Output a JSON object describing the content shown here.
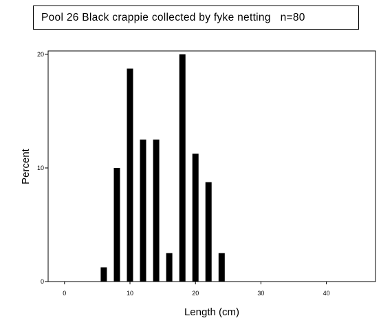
{
  "chart_data": {
    "type": "bar",
    "title": "Pool 26 Black crappie collected by fyke netting   n=80",
    "xlabel": "Length (cm)",
    "ylabel": "Percent",
    "x": [
      6,
      8,
      10,
      12,
      14,
      16,
      18,
      20,
      22,
      24
    ],
    "values": [
      1.25,
      10,
      18.75,
      12.5,
      12.5,
      2.5,
      20,
      11.25,
      8.75,
      2.5
    ],
    "xlim": [
      -2.5,
      47.5
    ],
    "ylim": [
      0,
      20.3
    ],
    "x_ticks": [
      0,
      10,
      20,
      30,
      40
    ],
    "y_ticks": [
      0,
      10,
      20
    ],
    "bar_color": "#000000",
    "grid": false,
    "legend": "none"
  }
}
